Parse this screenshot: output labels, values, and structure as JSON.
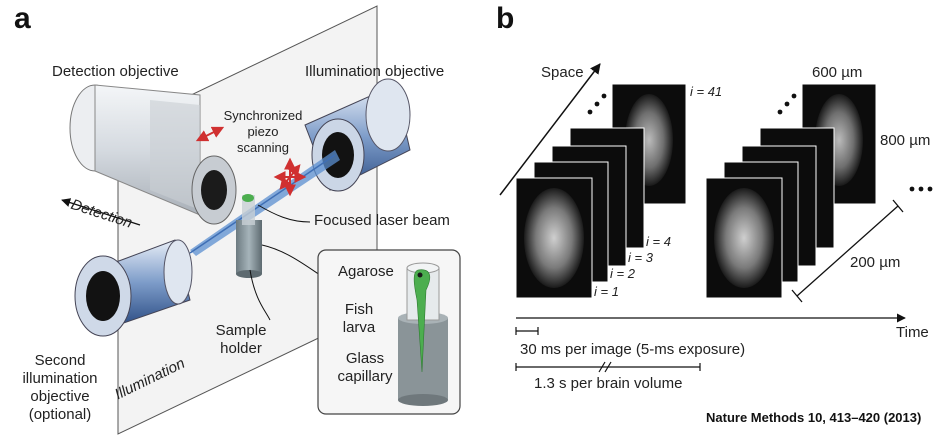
{
  "panel_a": {
    "letter": "a",
    "detection_objective": "Detection objective",
    "illumination_objective": "Illumination objective",
    "piezo_line1": "Synchronized",
    "piezo_line2": "piezo",
    "piezo_line3": "scanning",
    "detection_axis": "Detection",
    "focused_beam": "Focused laser beam",
    "agarose": "Agarose",
    "fish_line1": "Fish",
    "fish_line2": "larva",
    "glass_line1": "Glass",
    "glass_line2": "capillary",
    "sample_line1": "Sample",
    "sample_line2": "holder",
    "second_line1": "Second",
    "second_line2": "illumination",
    "second_line3": "objective",
    "second_line4": "(optional)",
    "illumination_axis": "Illumination"
  },
  "panel_b": {
    "letter": "b",
    "space": "Space",
    "i41": "i = 41",
    "i4": "i = 4",
    "i3": "i = 3",
    "i2": "i = 2",
    "i1": "i = 1",
    "dim_600": "600 µm",
    "dim_800": "800 µm",
    "dim_200": "200 µm",
    "time": "Time",
    "per_image": "30 ms per image (5-ms exposure)",
    "per_volume": "1.3 s per brain volume"
  },
  "citation": "Nature Methods 10, 413–420 (2013)",
  "colors": {
    "laser": "#5b8fd0",
    "arrow_red": "#d03030",
    "fish_green": "#4cae4f",
    "cylinder_body": "#dfe3e8"
  }
}
